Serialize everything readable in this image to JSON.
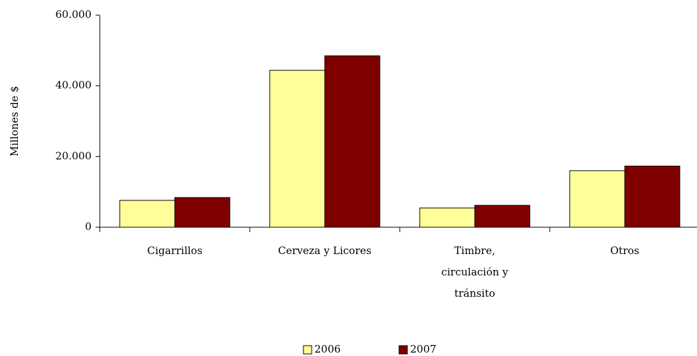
{
  "chart_data": {
    "type": "bar",
    "y_label": "Millones de $",
    "categories": [
      "Cigarrillos",
      "Cerveza y Licores",
      "Timbre, circulación y tránsito",
      "Otros"
    ],
    "series": [
      {
        "name": "2006",
        "color": "#ffff99",
        "values": [
          7600,
          44400,
          5450,
          16000
        ]
      },
      {
        "name": "2007",
        "color": "#800000",
        "values": [
          8400,
          48500,
          6200,
          17300
        ]
      }
    ],
    "ylim": [
      0,
      60000
    ],
    "yticks": [
      0,
      {
        "value": 20000,
        "label": "20.000"
      },
      {
        "value": 40000,
        "label": "40.000"
      },
      {
        "value": 60000,
        "label": "60.000"
      }
    ],
    "grid": false,
    "legend": "bottom"
  }
}
